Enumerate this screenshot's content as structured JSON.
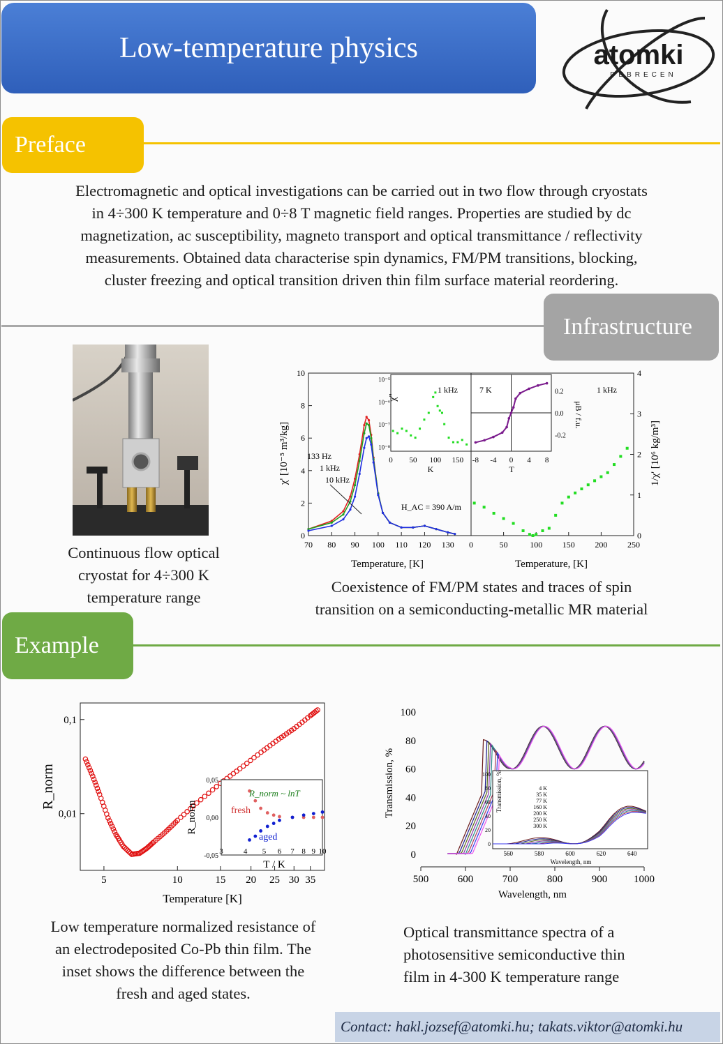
{
  "header": {
    "title": "Low-temperature physics"
  },
  "logo": {
    "name": "atomki",
    "sub": "DEBRECEN"
  },
  "sections": {
    "preface": "Preface",
    "infrastructure": "Infrastructure",
    "example": "Example"
  },
  "preface_text": [
    "Electromagnetic and optical investigations can be carried out in two flow through cryostats",
    "in 4÷300 K temperature and 0÷8 T magnetic field ranges. Properties are studied by dc",
    "magnetization, ac susceptibility, magneto transport and optical transmittance / reflectivity",
    "measurements. Obtained data characterise spin dynamics, FM/PM transitions, blocking,",
    "cluster freezing and optical transition driven thin film surface material reordering."
  ],
  "captions": {
    "cryostat": [
      "Continuous flow optical",
      "cryostat for 4÷300 K",
      "temperature range"
    ],
    "susceptibility": [
      "Coexistence of FM/PM states and traces of spin",
      "transition on a semiconducting-metallic MR material"
    ],
    "resistance": [
      "Low temperature normalized resistance of",
      "an electrodeposited Co-Pb thin film. The",
      "inset shows the difference between the",
      "fresh and aged states."
    ],
    "transmittance": [
      "Optical transmittance spectra of a",
      "photosensitive semiconductive thin",
      "film in 4-300 K temperature range"
    ]
  },
  "chart_data": [
    {
      "type": "line",
      "xlabel": "Temperature, [K]",
      "ylabel": "χ' [10⁻⁵ m³/kg]",
      "xlim": [
        70,
        140
      ],
      "ylim": [
        0,
        10
      ],
      "xticks": [
        70,
        80,
        90,
        100,
        110,
        120,
        130
      ],
      "yticks": [
        0,
        2,
        4,
        6,
        8,
        10
      ],
      "series": [
        {
          "name": "133 Hz",
          "color": "#e02020",
          "x": [
            70,
            80,
            85,
            88,
            90,
            92,
            94,
            95,
            96,
            97,
            98,
            100,
            102,
            105,
            110,
            115,
            120,
            125,
            130,
            133
          ],
          "y": [
            0.4,
            0.9,
            1.5,
            2.4,
            3.5,
            5.0,
            6.8,
            7.3,
            7.1,
            6.2,
            4.8,
            2.6,
            1.4,
            0.8,
            0.5,
            0.5,
            0.6,
            0.4,
            0.2,
            0.1
          ]
        },
        {
          "name": "1 kHz",
          "color": "#20a020",
          "x": [
            70,
            80,
            85,
            88,
            90,
            92,
            94,
            95,
            96,
            97,
            98,
            100,
            102,
            105,
            110,
            115,
            120,
            125,
            130,
            133
          ],
          "y": [
            0.4,
            0.8,
            1.3,
            2.1,
            3.1,
            4.6,
            6.3,
            6.9,
            6.8,
            6.0,
            4.7,
            2.6,
            1.4,
            0.8,
            0.5,
            0.5,
            0.6,
            0.4,
            0.2,
            0.1
          ]
        },
        {
          "name": "10 kHz",
          "color": "#2030e0",
          "x": [
            70,
            80,
            85,
            88,
            90,
            92,
            94,
            95,
            96,
            97,
            98,
            100,
            102,
            105,
            110,
            115,
            120,
            125,
            130,
            133
          ],
          "y": [
            0.3,
            0.6,
            1.0,
            1.6,
            2.4,
            3.8,
            5.4,
            6.0,
            6.1,
            5.6,
            4.5,
            2.5,
            1.4,
            0.8,
            0.5,
            0.5,
            0.6,
            0.4,
            0.2,
            0.1
          ]
        }
      ],
      "annotation": "H_AC = 390 A/m"
    },
    {
      "type": "scatter",
      "xlabel": "Temperature, [K]",
      "ylabel": "1/χ' [10⁶ kg/m³]",
      "xlim": [
        0,
        250
      ],
      "ylim": [
        0,
        4
      ],
      "xticks": [
        0,
        50,
        100,
        150,
        200,
        250
      ],
      "yticks": [
        0,
        1,
        2,
        3,
        4
      ],
      "label": "1 kHz",
      "series": [
        {
          "name": "",
          "color": "#22dd22",
          "x": [
            5,
            20,
            35,
            50,
            65,
            80,
            90,
            95,
            100,
            110,
            120,
            130,
            140,
            150,
            160,
            170,
            180,
            190,
            200,
            210,
            220,
            230,
            240
          ],
          "y": [
            0.8,
            0.7,
            0.55,
            0.42,
            0.3,
            0.12,
            0.03,
            0.0,
            0.03,
            0.12,
            0.18,
            0.5,
            0.8,
            0.95,
            1.05,
            1.15,
            1.25,
            1.35,
            1.45,
            1.55,
            1.75,
            1.95,
            2.15
          ]
        }
      ]
    },
    {
      "type": "scatter",
      "xlabel": "K",
      "ylabel": "χ''",
      "xlim": [
        0,
        180
      ],
      "ylabel_scale": "log",
      "yticks": [
        "10⁻⁸",
        "10⁻⁷",
        "10⁻⁶",
        "10⁻⁵"
      ],
      "xticks": [
        0,
        50,
        100,
        150
      ],
      "label": "1 kHz",
      "series": [
        {
          "name": "",
          "color": "#22dd22",
          "x": [
            5,
            15,
            25,
            35,
            45,
            55,
            65,
            75,
            85,
            95,
            100,
            105,
            110,
            115,
            120,
            130,
            140,
            150,
            160,
            170
          ],
          "y": [
            -7.3,
            -7.4,
            -7.2,
            -7.3,
            -7.5,
            -7.6,
            -7.2,
            -6.8,
            -6.5,
            -5.8,
            -5.6,
            -6.2,
            -6.4,
            -6.5,
            -7.0,
            -7.6,
            -7.8,
            -7.8,
            -7.7,
            -7.9
          ]
        }
      ]
    },
    {
      "type": "line",
      "xlabel": "T",
      "ylabel": "μB / f.u.",
      "xlim": [
        -9,
        9
      ],
      "ylim": [
        -0.35,
        0.35
      ],
      "xticks": [
        -8,
        -4,
        0,
        4,
        8
      ],
      "yticks": [
        -0.2,
        0.0,
        0.2
      ],
      "label": "7 K",
      "series": [
        {
          "name": "",
          "color": "#7a1a8c",
          "x": [
            -8,
            -6,
            -4,
            -2,
            -1,
            -0.5,
            0,
            0.5,
            1,
            2,
            4,
            6,
            8
          ],
          "y": [
            -0.27,
            -0.25,
            -0.22,
            -0.18,
            -0.13,
            -0.05,
            0.0,
            0.05,
            0.13,
            0.18,
            0.22,
            0.25,
            0.27
          ]
        }
      ]
    },
    {
      "type": "scatter",
      "xlabel": "Temperature [K]",
      "ylabel": "R_norm",
      "x_scale": "log",
      "y_scale": "log",
      "xlim": [
        4,
        40
      ],
      "ylim": [
        0.0025,
        0.15
      ],
      "xticks": [
        5,
        10,
        15,
        20,
        25,
        30,
        35
      ],
      "yticks": [
        "0,01",
        "0,1"
      ],
      "series": [
        {
          "name": "",
          "color": "#e01010",
          "x": [
            4.2,
            4.5,
            4.8,
            5.2,
            5.6,
            6.0,
            6.5,
            7.0,
            7.5,
            8,
            9,
            10,
            12,
            15,
            18,
            22,
            26,
            30,
            35,
            38
          ],
          "y": [
            0.038,
            0.025,
            0.016,
            0.009,
            0.006,
            0.0045,
            0.0037,
            0.0038,
            0.0043,
            0.005,
            0.0065,
            0.0085,
            0.013,
            0.021,
            0.03,
            0.045,
            0.062,
            0.08,
            0.11,
            0.13
          ]
        }
      ]
    },
    {
      "type": "scatter",
      "xlabel": "T / K",
      "ylabel": "R_norm",
      "x_scale": "log",
      "xlim": [
        3,
        10
      ],
      "ylim": [
        -0.05,
        0.05
      ],
      "xticks": [
        3,
        4,
        5,
        6,
        7,
        8,
        9,
        10
      ],
      "yticks": [
        "-0,05",
        "0,00",
        "0,05"
      ],
      "annotation": "R_norm ~ lnT",
      "series": [
        {
          "name": "fresh",
          "color": "#e06060",
          "x": [
            4.2,
            4.5,
            4.8,
            5.2,
            5.6,
            6.0,
            7,
            8,
            9,
            10
          ],
          "y": [
            0.035,
            0.022,
            0.012,
            0.006,
            0.003,
            0.001,
            0.0,
            0.0,
            0.0,
            0.0
          ]
        },
        {
          "name": "aged",
          "color": "#1020d0",
          "x": [
            4.2,
            4.5,
            4.8,
            5.2,
            5.6,
            6.0,
            7,
            8,
            9,
            10
          ],
          "y": [
            -0.03,
            -0.025,
            -0.018,
            -0.012,
            -0.008,
            -0.004,
            0.0,
            0.003,
            0.005,
            0.007
          ]
        }
      ]
    },
    {
      "type": "line",
      "xlabel": "Wavelength, nm",
      "ylabel": "Transmission, %",
      "xlim": [
        500,
        1000
      ],
      "ylim": [
        0,
        100
      ],
      "xticks": [
        500,
        600,
        700,
        800,
        900,
        1000
      ],
      "yticks": [
        0,
        20,
        40,
        60,
        80,
        100
      ],
      "series_names": [
        "4 K",
        "35 K",
        "77 K",
        "160 K",
        "200 K",
        "250 K",
        "300 K"
      ]
    }
  ],
  "contact": "Contact: hakl.jozsef@atomki.hu; takats.viktor@atomki.hu"
}
